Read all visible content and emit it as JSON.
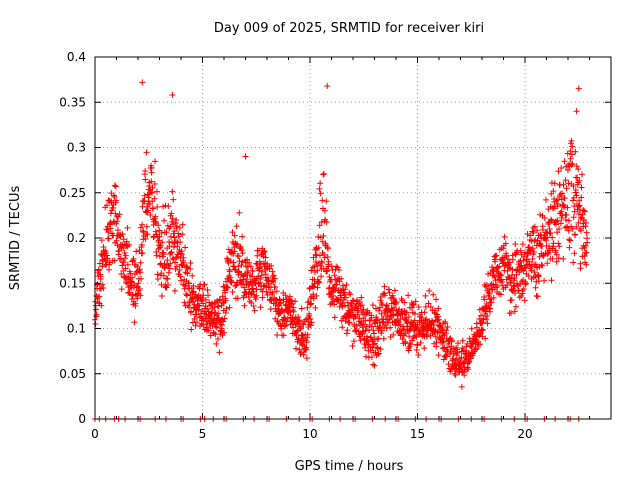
{
  "chart_data": {
    "type": "scatter",
    "title": "Day 009 of 2025, SRMTID for receiver kiri",
    "xlabel": "GPS time / hours",
    "ylabel": "SRMTID / TECUs",
    "xlim": [
      0,
      24
    ],
    "ylim": [
      0,
      0.4
    ],
    "grid": true,
    "marker": "+",
    "color": "#ff0000",
    "xticks": [
      0,
      5,
      10,
      15,
      20
    ],
    "xtick_labels": [
      "0",
      "5",
      "10",
      "15",
      "20"
    ],
    "yticks": [
      0,
      0.05,
      0.1,
      0.15,
      0.2,
      0.25,
      0.3,
      0.35,
      0.4
    ],
    "ytick_labels": [
      "0",
      "0.05",
      "0.1",
      "0.15",
      "0.2",
      "0.25",
      "0.3",
      "0.35",
      "0.4"
    ],
    "series": [
      {
        "name": "SRMTID",
        "profile_hours": [
          0.0,
          0.3,
          0.6,
          0.9,
          1.2,
          1.6,
          2.0,
          2.3,
          2.6,
          3.0,
          3.4,
          3.8,
          4.2,
          4.6,
          5.0,
          5.4,
          5.8,
          6.2,
          6.6,
          7.0,
          7.4,
          7.8,
          8.2,
          8.6,
          9.0,
          9.4,
          9.8,
          10.2,
          10.6,
          10.9,
          11.3,
          11.8,
          12.2,
          12.6,
          13.0,
          13.4,
          13.8,
          14.2,
          14.6,
          15.0,
          15.4,
          15.8,
          16.2,
          16.6,
          17.0,
          17.4,
          17.8,
          18.2,
          18.6,
          19.0,
          19.4,
          19.8,
          20.2,
          20.6,
          21.0,
          21.4,
          21.8,
          22.2,
          22.6,
          22.9
        ],
        "profile_center": [
          0.12,
          0.16,
          0.21,
          0.22,
          0.19,
          0.16,
          0.14,
          0.23,
          0.26,
          0.18,
          0.19,
          0.2,
          0.16,
          0.13,
          0.12,
          0.11,
          0.1,
          0.16,
          0.18,
          0.15,
          0.15,
          0.17,
          0.14,
          0.12,
          0.12,
          0.1,
          0.09,
          0.16,
          0.22,
          0.15,
          0.14,
          0.12,
          0.11,
          0.1,
          0.09,
          0.11,
          0.12,
          0.11,
          0.1,
          0.1,
          0.1,
          0.11,
          0.09,
          0.07,
          0.06,
          0.07,
          0.09,
          0.12,
          0.16,
          0.17,
          0.15,
          0.16,
          0.18,
          0.18,
          0.2,
          0.22,
          0.24,
          0.25,
          0.22,
          0.2
        ],
        "profile_spread": [
          0.03,
          0.05,
          0.06,
          0.07,
          0.06,
          0.06,
          0.06,
          0.08,
          0.08,
          0.07,
          0.09,
          0.05,
          0.05,
          0.04,
          0.04,
          0.04,
          0.04,
          0.05,
          0.07,
          0.04,
          0.04,
          0.06,
          0.04,
          0.04,
          0.03,
          0.04,
          0.04,
          0.05,
          0.12,
          0.04,
          0.04,
          0.04,
          0.04,
          0.05,
          0.05,
          0.05,
          0.04,
          0.04,
          0.05,
          0.04,
          0.04,
          0.04,
          0.04,
          0.03,
          0.03,
          0.03,
          0.03,
          0.04,
          0.04,
          0.05,
          0.05,
          0.05,
          0.05,
          0.06,
          0.06,
          0.07,
          0.08,
          0.1,
          0.08,
          0.06
        ],
        "notable_peaks": [
          {
            "x": 2.2,
            "y": 0.372
          },
          {
            "x": 3.6,
            "y": 0.358
          },
          {
            "x": 10.8,
            "y": 0.368
          },
          {
            "x": 22.5,
            "y": 0.365
          },
          {
            "x": 22.4,
            "y": 0.34
          },
          {
            "x": 7.0,
            "y": 0.29
          }
        ],
        "zero_marks_hours": [
          0.0,
          0.2,
          0.5,
          0.9,
          1.1,
          1.4,
          2.0,
          2.1,
          2.8,
          3.3,
          4.0,
          4.1,
          4.9,
          5.1,
          5.5,
          6.0,
          6.1,
          6.9,
          7.4,
          8.0,
          8.1,
          8.9,
          9.5,
          10.0,
          10.1,
          10.9,
          11.4,
          12.0,
          12.1,
          12.9,
          13.5,
          14.0,
          14.1,
          14.9,
          15.4,
          16.0,
          16.1,
          16.9,
          17.5,
          18.0,
          18.1,
          18.9,
          19.5,
          20.0,
          20.1,
          20.9,
          21.4,
          22.0,
          22.1,
          22.5
        ]
      }
    ]
  }
}
